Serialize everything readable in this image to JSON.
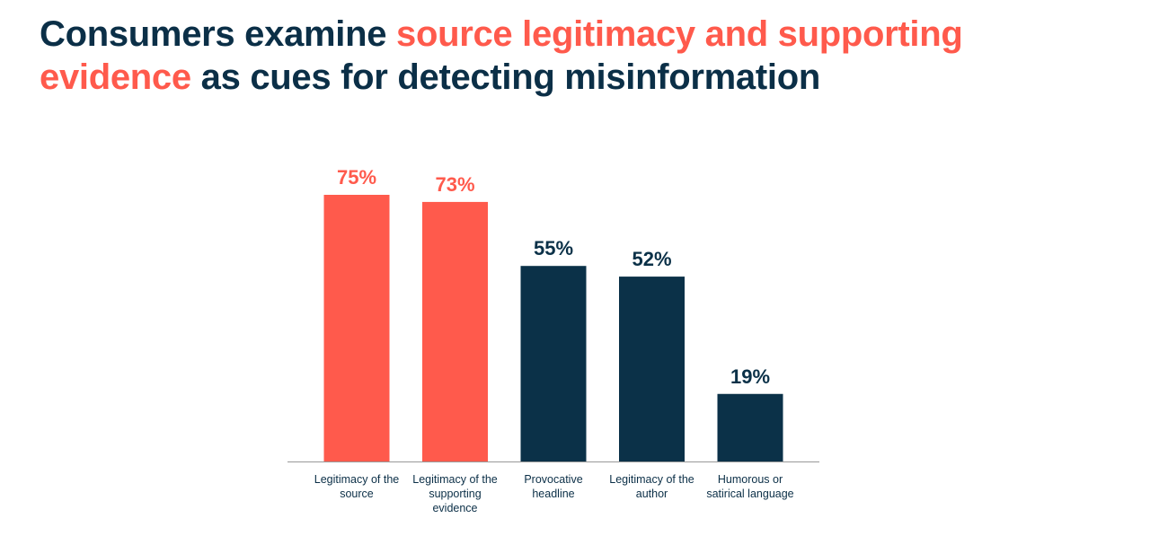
{
  "chart_data": {
    "type": "bar",
    "title": [
      {
        "text": "Consumers examine",
        "color": "#0b2f47"
      },
      {
        "text": "source legitimacy and supporting evidence",
        "color": "#ff5a4c"
      },
      {
        "text": "as cues for detecting misinformation",
        "color": "#0b2f47"
      }
    ],
    "categories": [
      "Legitimacy of the source",
      "Legitimacy of the supporting evidence",
      "Provocative headline",
      "Legitimacy of the author",
      "Humorous or satirical language"
    ],
    "values": [
      75,
      73,
      55,
      52,
      19
    ],
    "value_labels": [
      "75%",
      "73%",
      "55%",
      "52%",
      "19%"
    ],
    "colors": [
      "#ff5a4c",
      "#ff5a4c",
      "#0b3148",
      "#0b3148",
      "#0b3148"
    ]
  }
}
